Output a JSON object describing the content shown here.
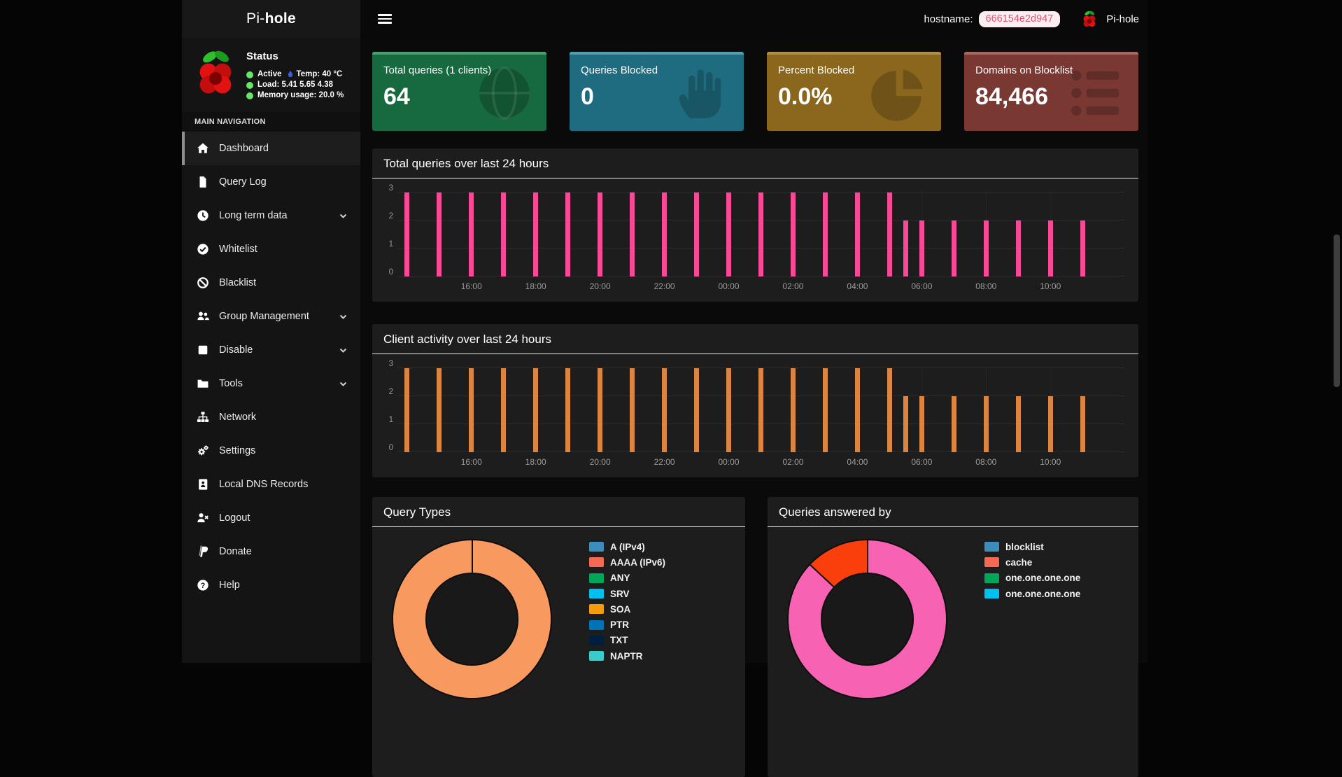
{
  "app": {
    "brand_prefix": "Pi-",
    "brand_bold": "hole",
    "hostname_label": "hostname:",
    "hostname_value": "666154e2d947",
    "topbar_brand": "Pi-hole"
  },
  "sidebar": {
    "status": {
      "title": "Status",
      "line1_text": "Active",
      "line1_temp": "Temp: 40 °C",
      "line2_text": "Load:  5.41  5.65  4.38",
      "line3_text": "Memory usage:  20.0 %"
    },
    "nav_section_label": "MAIN NAVIGATION",
    "nav_items": [
      {
        "label": "Dashboard",
        "icon": "home",
        "active": true,
        "chevron": false
      },
      {
        "label": "Query Log",
        "icon": "file",
        "active": false,
        "chevron": false
      },
      {
        "label": "Long term data",
        "icon": "clock",
        "active": false,
        "chevron": true
      },
      {
        "label": "Whitelist",
        "icon": "check-circle",
        "active": false,
        "chevron": false
      },
      {
        "label": "Blacklist",
        "icon": "ban",
        "active": false,
        "chevron": false
      },
      {
        "label": "Group Management",
        "icon": "users",
        "active": false,
        "chevron": true
      },
      {
        "label": "Disable",
        "icon": "stop",
        "active": false,
        "chevron": true
      },
      {
        "label": "Tools",
        "icon": "folder",
        "active": false,
        "chevron": true
      },
      {
        "label": "Network",
        "icon": "sitemap",
        "active": false,
        "chevron": false
      },
      {
        "label": "Settings",
        "icon": "gears",
        "active": false,
        "chevron": false
      },
      {
        "label": "Local DNS Records",
        "icon": "address-book",
        "active": false,
        "chevron": false
      },
      {
        "label": "Logout",
        "icon": "user-times",
        "active": false,
        "chevron": false
      },
      {
        "label": "Donate",
        "icon": "paypal",
        "active": false,
        "chevron": false
      },
      {
        "label": "Help",
        "icon": "question",
        "active": false,
        "chevron": false
      }
    ]
  },
  "cards": [
    {
      "title": "Total queries (1 clients)",
      "value": "64",
      "bg": "#17693f",
      "strip": "#4c9e6e",
      "icon": "globe"
    },
    {
      "title": "Queries Blocked",
      "value": "0",
      "bg": "#1f6b7f",
      "strip": "#579dad",
      "icon": "hand"
    },
    {
      "title": "Percent Blocked",
      "value": "0.0%",
      "bg": "#8a671d",
      "strip": "#ab8f52",
      "icon": "pie"
    },
    {
      "title": "Domains on Blocklist",
      "value": "84,466",
      "bg": "#793832",
      "strip": "#a16a63",
      "icon": "list"
    }
  ],
  "chart_data": [
    {
      "type": "bar",
      "title": "Total queries over last 24 hours",
      "color": "#f94996",
      "ylim": [
        0,
        3
      ],
      "yticks": [
        0,
        1,
        2,
        3
      ],
      "axis": {
        "start": -0.3,
        "end": 22.3
      },
      "xticks": [
        {
          "t": 2,
          "label": "16:00"
        },
        {
          "t": 4,
          "label": "18:00"
        },
        {
          "t": 6,
          "label": "20:00"
        },
        {
          "t": 8,
          "label": "22:00"
        },
        {
          "t": 10,
          "label": "00:00"
        },
        {
          "t": 12,
          "label": "02:00"
        },
        {
          "t": 14,
          "label": "04:00"
        },
        {
          "t": 16,
          "label": "06:00"
        },
        {
          "t": 18,
          "label": "08:00"
        },
        {
          "t": 20,
          "label": "10:00"
        }
      ],
      "bars": [
        [
          "14:00",
          0,
          3
        ],
        [
          "15:00",
          1,
          3
        ],
        [
          "16:00",
          2,
          3
        ],
        [
          "17:00",
          3,
          3
        ],
        [
          "18:00",
          4,
          3
        ],
        [
          "19:00",
          5,
          3
        ],
        [
          "20:00",
          6,
          3
        ],
        [
          "21:00",
          7,
          3
        ],
        [
          "22:00",
          8,
          3
        ],
        [
          "23:00",
          9,
          3
        ],
        [
          "00:00",
          10,
          3
        ],
        [
          "01:00",
          11,
          3
        ],
        [
          "02:00",
          12,
          3
        ],
        [
          "03:00",
          13,
          3
        ],
        [
          "04:00",
          14,
          3
        ],
        [
          "05:00",
          15,
          3
        ],
        [
          "05:30",
          15.5,
          2
        ],
        [
          "06:00",
          16,
          2
        ],
        [
          "07:00",
          17,
          2
        ],
        [
          "08:00",
          18,
          2
        ],
        [
          "09:00",
          19,
          2
        ],
        [
          "10:00",
          20,
          2
        ],
        [
          "11:00",
          21,
          2
        ]
      ]
    },
    {
      "type": "bar",
      "title": "Client activity over last 24 hours",
      "color": "#dc8540",
      "ylim": [
        0,
        3
      ],
      "yticks": [
        0,
        1,
        2,
        3
      ],
      "axis": {
        "start": -0.3,
        "end": 22.3
      },
      "xticks": [
        {
          "t": 2,
          "label": "16:00"
        },
        {
          "t": 4,
          "label": "18:00"
        },
        {
          "t": 6,
          "label": "20:00"
        },
        {
          "t": 8,
          "label": "22:00"
        },
        {
          "t": 10,
          "label": "00:00"
        },
        {
          "t": 12,
          "label": "02:00"
        },
        {
          "t": 14,
          "label": "04:00"
        },
        {
          "t": 16,
          "label": "06:00"
        },
        {
          "t": 18,
          "label": "08:00"
        },
        {
          "t": 20,
          "label": "10:00"
        }
      ],
      "bars": [
        [
          "14:00",
          0,
          3
        ],
        [
          "15:00",
          1,
          3
        ],
        [
          "16:00",
          2,
          3
        ],
        [
          "17:00",
          3,
          3
        ],
        [
          "18:00",
          4,
          3
        ],
        [
          "19:00",
          5,
          3
        ],
        [
          "20:00",
          6,
          3
        ],
        [
          "21:00",
          7,
          3
        ],
        [
          "22:00",
          8,
          3
        ],
        [
          "23:00",
          9,
          3
        ],
        [
          "00:00",
          10,
          3
        ],
        [
          "01:00",
          11,
          3
        ],
        [
          "02:00",
          12,
          3
        ],
        [
          "03:00",
          13,
          3
        ],
        [
          "04:00",
          14,
          3
        ],
        [
          "05:00",
          15,
          3
        ],
        [
          "05:30",
          15.5,
          2
        ],
        [
          "06:00",
          16,
          2
        ],
        [
          "07:00",
          17,
          2
        ],
        [
          "08:00",
          18,
          2
        ],
        [
          "09:00",
          19,
          2
        ],
        [
          "10:00",
          20,
          2
        ],
        [
          "11:00",
          21,
          2
        ]
      ]
    },
    {
      "type": "donut",
      "title": "Query Types",
      "slices": [
        {
          "color": "#f89a5f",
          "from_deg": 0,
          "to_deg": 360,
          "percent": 100
        }
      ],
      "dividers_deg": [
        0
      ],
      "legend": [
        {
          "label": "A (IPv4)",
          "color": "#3c8dbc"
        },
        {
          "label": "AAAA (IPv6)",
          "color": "#f56954"
        },
        {
          "label": "ANY",
          "color": "#00a65a"
        },
        {
          "label": "SRV",
          "color": "#00c0ef"
        },
        {
          "label": "SOA",
          "color": "#f39c12"
        },
        {
          "label": "PTR",
          "color": "#0073b7"
        },
        {
          "label": "TXT",
          "color": "#001f3f"
        },
        {
          "label": "NAPTR",
          "color": "#39cccc"
        }
      ]
    },
    {
      "type": "donut",
      "title": "Queries answered by",
      "slices": [
        {
          "color": "#f763b2",
          "from_deg": 0,
          "to_deg": 313,
          "percent": 87
        },
        {
          "color": "#fa3e0c",
          "from_deg": 313,
          "to_deg": 360,
          "percent": 13
        }
      ],
      "dividers_deg": [
        0,
        313
      ],
      "legend": [
        {
          "label": "blocklist",
          "color": "#3c8dbc"
        },
        {
          "label": "cache",
          "color": "#f56954"
        },
        {
          "label": "one.one.one.one",
          "color": "#00a65a"
        },
        {
          "label": "one.one.one.one",
          "color": "#00c0ef"
        }
      ]
    }
  ]
}
